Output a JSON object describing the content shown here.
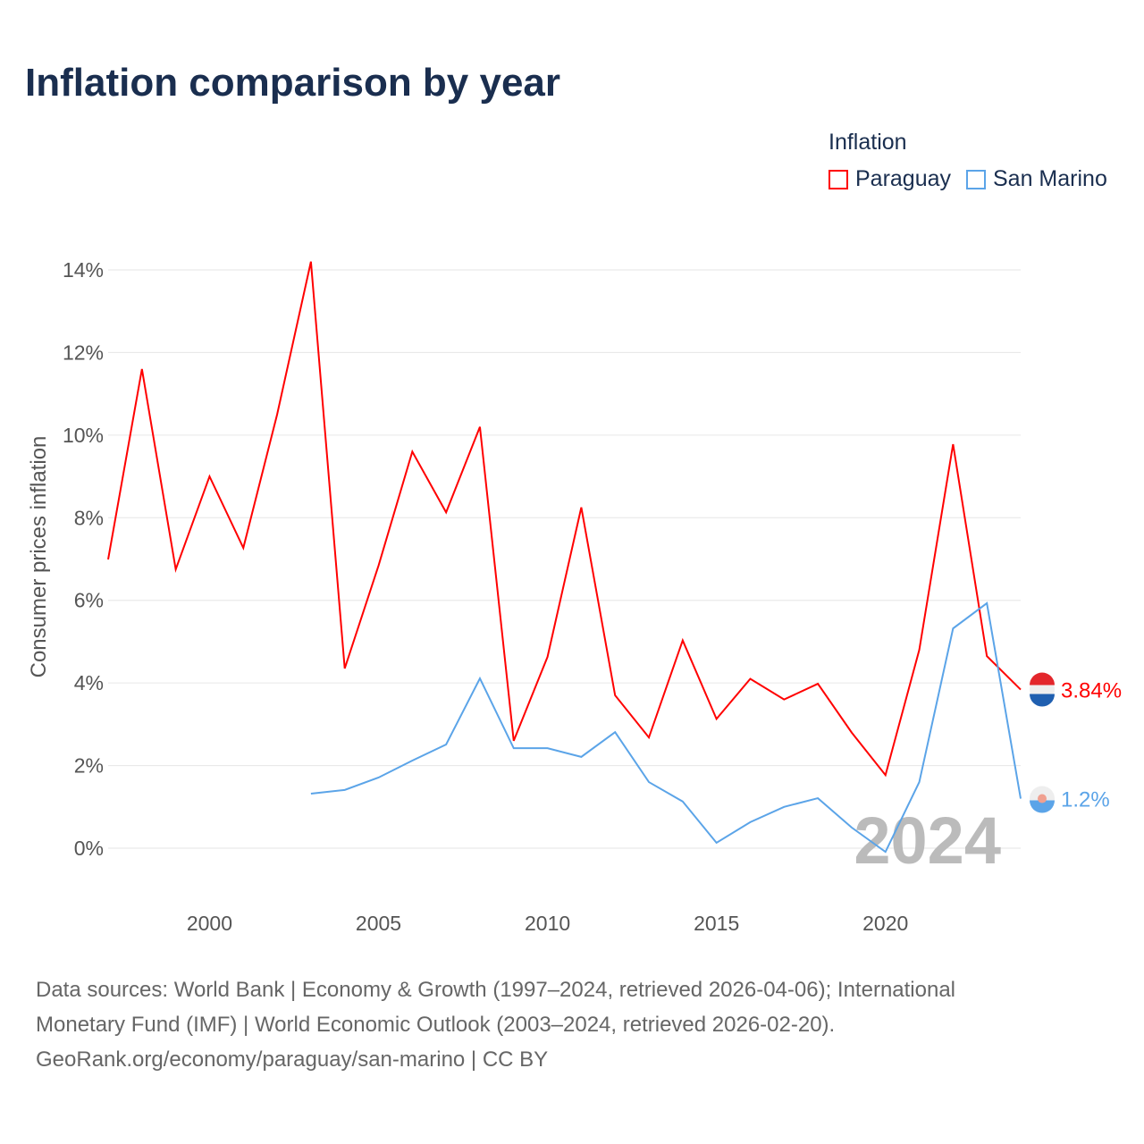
{
  "title": "Inflation comparison by year",
  "legend": {
    "title": "Inflation",
    "items": [
      "Paraguay",
      "San Marino"
    ]
  },
  "source_lines": [
    "Data sources: World Bank | Economy & Growth (1997–2024, retrieved 2026-04-06); International",
    "Monetary Fund (IMF) | World Economic Outlook (2003–2024, retrieved 2026-02-20).",
    "GeoRank.org/economy/paraguay/san-marino | CC BY"
  ],
  "chart_data": {
    "type": "line",
    "title": "Inflation comparison by year",
    "ylabel": "Consumer prices inflation",
    "xlabel": "",
    "ylim": [
      0,
      14
    ],
    "xlim": [
      1997,
      2024
    ],
    "yticks": [
      0,
      2,
      4,
      6,
      8,
      10,
      12,
      14
    ],
    "ytick_labels": [
      "0%",
      "2%",
      "4%",
      "6%",
      "8%",
      "10%",
      "12%",
      "14%"
    ],
    "xticks": [
      2000,
      2005,
      2010,
      2015,
      2020
    ],
    "xtick_labels": [
      "2000",
      "2005",
      "2010",
      "2015",
      "2020"
    ],
    "year_watermark": "2024",
    "grid": true,
    "legend_position": "top-right",
    "series": [
      {
        "name": "Paraguay",
        "color": "#ff0000",
        "end_label": "3.84%",
        "x": [
          1997,
          1998,
          1999,
          2000,
          2001,
          2002,
          2003,
          2004,
          2005,
          2006,
          2007,
          2008,
          2009,
          2010,
          2011,
          2012,
          2013,
          2014,
          2015,
          2016,
          2017,
          2018,
          2019,
          2020,
          2021,
          2022,
          2023,
          2024
        ],
        "values": [
          6.99,
          11.6,
          6.75,
          9.0,
          7.27,
          10.5,
          14.2,
          4.35,
          6.84,
          9.6,
          8.13,
          10.2,
          2.6,
          4.63,
          8.25,
          3.7,
          2.68,
          5.03,
          3.13,
          4.1,
          3.6,
          3.98,
          2.8,
          1.77,
          4.8,
          9.78,
          4.65,
          3.84
        ]
      },
      {
        "name": "San Marino",
        "color": "#5ba4e8",
        "end_label": "1.2%",
        "x": [
          2003,
          2004,
          2005,
          2006,
          2007,
          2008,
          2009,
          2010,
          2011,
          2012,
          2013,
          2014,
          2015,
          2016,
          2017,
          2018,
          2019,
          2020,
          2021,
          2022,
          2023,
          2024
        ],
        "values": [
          1.32,
          1.41,
          1.71,
          2.12,
          2.51,
          4.11,
          2.42,
          2.42,
          2.21,
          2.81,
          1.6,
          1.13,
          0.13,
          0.63,
          1.0,
          1.21,
          0.5,
          -0.09,
          1.6,
          5.32,
          5.93,
          1.2
        ]
      }
    ]
  }
}
